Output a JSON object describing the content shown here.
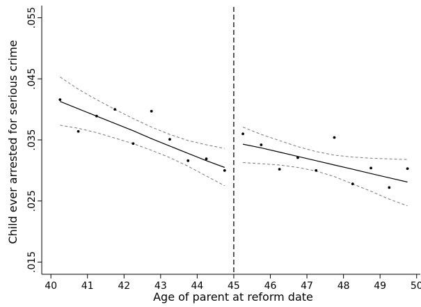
{
  "chart_data": {
    "type": "scatter",
    "title": "",
    "xlabel": "Age of parent at reform date",
    "ylabel": "Child ever arrested for serious crime",
    "xlim": [
      39.75,
      50.1
    ],
    "ylim": [
      0.013,
      0.057
    ],
    "x_ticks": [
      {
        "value": 40,
        "label": "40"
      },
      {
        "value": 41,
        "label": "41"
      },
      {
        "value": 42,
        "label": "42"
      },
      {
        "value": 43,
        "label": "43"
      },
      {
        "value": 44,
        "label": "44"
      },
      {
        "value": 45,
        "label": "45"
      },
      {
        "value": 46,
        "label": "46"
      },
      {
        "value": 47,
        "label": "47"
      },
      {
        "value": 48,
        "label": "48"
      },
      {
        "value": 49,
        "label": "49"
      },
      {
        "value": 50,
        "label": "50"
      }
    ],
    "y_ticks": [
      {
        "value": 0.015,
        "label": ".015"
      },
      {
        "value": 0.025,
        "label": ".025"
      },
      {
        "value": 0.035,
        "label": ".035"
      },
      {
        "value": 0.045,
        "label": ".045"
      },
      {
        "value": 0.055,
        "label": ".055"
      }
    ],
    "grid": false,
    "cutoff": 45,
    "bins": [
      {
        "x": 40.25,
        "y": 0.0416
      },
      {
        "x": 40.75,
        "y": 0.0364
      },
      {
        "x": 41.25,
        "y": 0.0389
      },
      {
        "x": 41.75,
        "y": 0.04
      },
      {
        "x": 42.25,
        "y": 0.0344
      },
      {
        "x": 42.75,
        "y": 0.0397
      },
      {
        "x": 43.25,
        "y": 0.0351
      },
      {
        "x": 43.75,
        "y": 0.0316
      },
      {
        "x": 44.25,
        "y": 0.0319
      },
      {
        "x": 44.75,
        "y": 0.03
      },
      {
        "x": 45.25,
        "y": 0.036
      },
      {
        "x": 45.75,
        "y": 0.0342
      },
      {
        "x": 46.25,
        "y": 0.0302
      },
      {
        "x": 46.75,
        "y": 0.0321
      },
      {
        "x": 47.25,
        "y": 0.03
      },
      {
        "x": 47.75,
        "y": 0.0354
      },
      {
        "x": 48.25,
        "y": 0.0278
      },
      {
        "x": 48.75,
        "y": 0.0304
      },
      {
        "x": 49.25,
        "y": 0.0272
      },
      {
        "x": 49.75,
        "y": 0.0303
      }
    ],
    "fits": [
      {
        "segment": "left",
        "x": [
          40.25,
          40.75,
          41.25,
          41.75,
          42.25,
          42.75,
          43.25,
          43.75,
          44.25,
          44.75
        ],
        "fit": [
          0.0413,
          0.0401,
          0.0389,
          0.0377,
          0.0365,
          0.0352,
          0.034,
          0.0328,
          0.0316,
          0.0305
        ],
        "ci_upper": [
          0.0453,
          0.0433,
          0.0416,
          0.04,
          0.0385,
          0.0371,
          0.0359,
          0.0349,
          0.0342,
          0.0336
        ],
        "ci_lower": [
          0.0374,
          0.0369,
          0.0362,
          0.0353,
          0.0344,
          0.0333,
          0.0321,
          0.0307,
          0.0291,
          0.0275
        ]
      },
      {
        "segment": "right",
        "x": [
          45.25,
          45.75,
          46.25,
          46.75,
          47.25,
          47.75,
          48.25,
          48.75,
          49.25,
          49.75
        ],
        "fit": [
          0.0343,
          0.0337,
          0.033,
          0.0323,
          0.0316,
          0.0309,
          0.0302,
          0.0295,
          0.0288,
          0.0281
        ],
        "ci_upper": [
          0.0371,
          0.0359,
          0.0349,
          0.0339,
          0.0331,
          0.0325,
          0.0322,
          0.032,
          0.0319,
          0.0318
        ],
        "ci_lower": [
          0.0313,
          0.0311,
          0.0309,
          0.0305,
          0.0299,
          0.029,
          0.0278,
          0.0266,
          0.0253,
          0.0242
        ]
      }
    ]
  }
}
